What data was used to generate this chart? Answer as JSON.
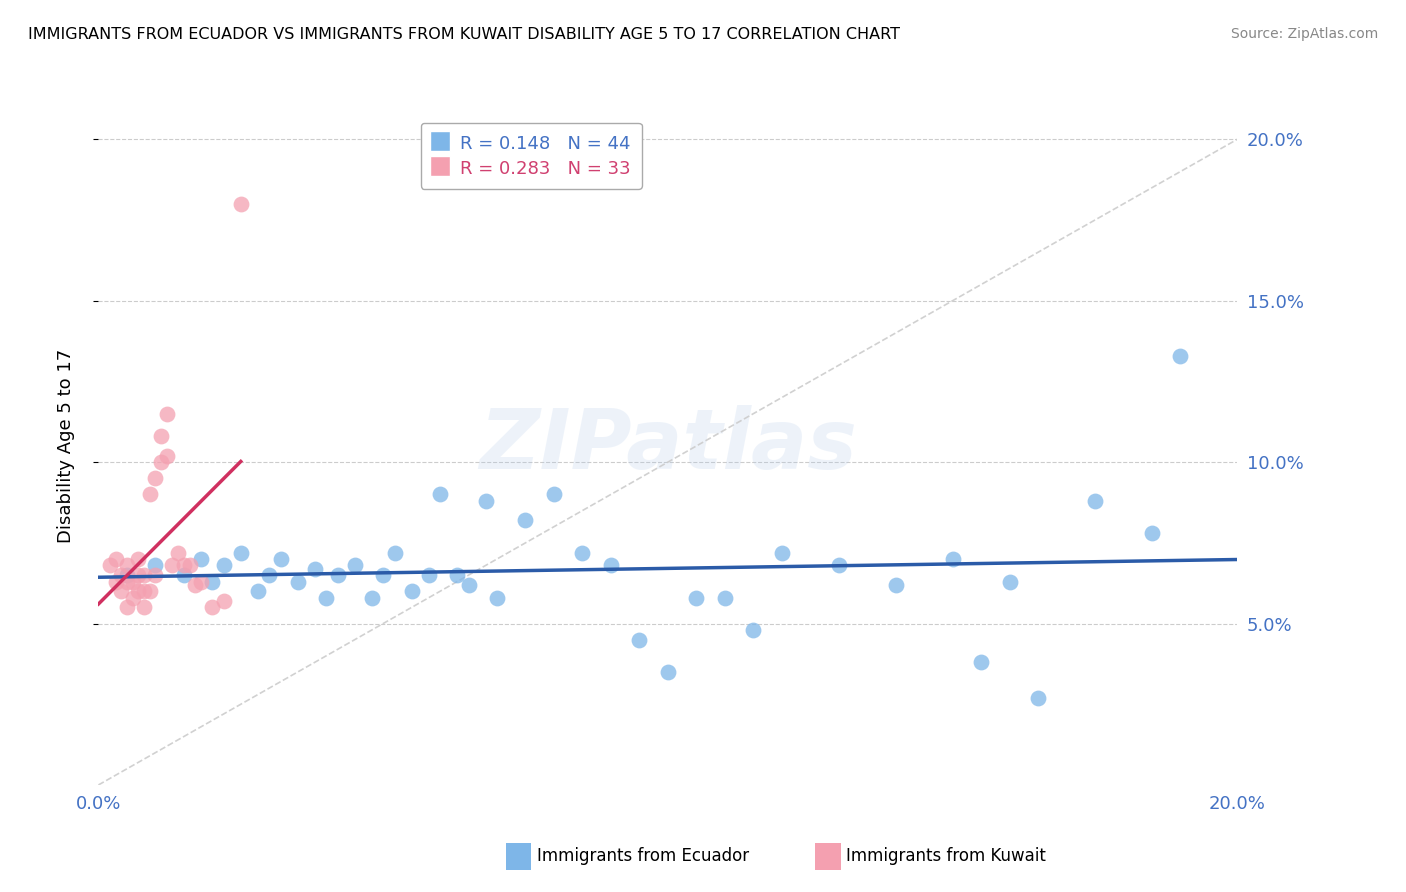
{
  "title": "IMMIGRANTS FROM ECUADOR VS IMMIGRANTS FROM KUWAIT DISABILITY AGE 5 TO 17 CORRELATION CHART",
  "source": "Source: ZipAtlas.com",
  "ylabel": "Disability Age 5 to 17",
  "xlim": [
    0.0,
    0.2
  ],
  "ylim": [
    0.0,
    0.21
  ],
  "xticks": [
    0.0,
    0.05,
    0.1,
    0.15,
    0.2
  ],
  "yticks": [
    0.05,
    0.1,
    0.15,
    0.2
  ],
  "xtick_labels": [
    "0.0%",
    "",
    "",
    "",
    "20.0%"
  ],
  "ytick_labels": [
    "5.0%",
    "10.0%",
    "15.0%",
    "20.0%"
  ],
  "ecuador_color": "#7EB6E8",
  "kuwait_color": "#F4A0B0",
  "ecuador_R": 0.148,
  "ecuador_N": 44,
  "kuwait_R": 0.283,
  "kuwait_N": 33,
  "legend_label_ecuador": "Immigrants from Ecuador",
  "legend_label_kuwait": "Immigrants from Kuwait",
  "watermark": "ZIPatlas",
  "ecuador_x": [
    0.005,
    0.01,
    0.015,
    0.018,
    0.02,
    0.022,
    0.025,
    0.028,
    0.03,
    0.032,
    0.035,
    0.038,
    0.04,
    0.042,
    0.045,
    0.048,
    0.05,
    0.052,
    0.055,
    0.058,
    0.06,
    0.063,
    0.065,
    0.068,
    0.07,
    0.075,
    0.08,
    0.085,
    0.09,
    0.095,
    0.1,
    0.105,
    0.11,
    0.115,
    0.12,
    0.13,
    0.14,
    0.15,
    0.155,
    0.16,
    0.165,
    0.175,
    0.185,
    0.19
  ],
  "ecuador_y": [
    0.065,
    0.068,
    0.065,
    0.07,
    0.063,
    0.068,
    0.072,
    0.06,
    0.065,
    0.07,
    0.063,
    0.067,
    0.058,
    0.065,
    0.068,
    0.058,
    0.065,
    0.072,
    0.06,
    0.065,
    0.09,
    0.065,
    0.062,
    0.088,
    0.058,
    0.082,
    0.09,
    0.072,
    0.068,
    0.045,
    0.035,
    0.058,
    0.058,
    0.048,
    0.072,
    0.068,
    0.062,
    0.07,
    0.038,
    0.063,
    0.027,
    0.088,
    0.078,
    0.133
  ],
  "kuwait_x": [
    0.002,
    0.003,
    0.003,
    0.004,
    0.004,
    0.005,
    0.005,
    0.005,
    0.006,
    0.006,
    0.007,
    0.007,
    0.007,
    0.008,
    0.008,
    0.008,
    0.009,
    0.009,
    0.01,
    0.01,
    0.011,
    0.011,
    0.012,
    0.012,
    0.013,
    0.014,
    0.015,
    0.016,
    0.017,
    0.018,
    0.02,
    0.022,
    0.025
  ],
  "kuwait_y": [
    0.068,
    0.063,
    0.07,
    0.06,
    0.065,
    0.055,
    0.063,
    0.068,
    0.058,
    0.063,
    0.06,
    0.065,
    0.07,
    0.055,
    0.06,
    0.065,
    0.06,
    0.09,
    0.065,
    0.095,
    0.1,
    0.108,
    0.115,
    0.102,
    0.068,
    0.072,
    0.068,
    0.068,
    0.062,
    0.063,
    0.055,
    0.057,
    0.18
  ]
}
